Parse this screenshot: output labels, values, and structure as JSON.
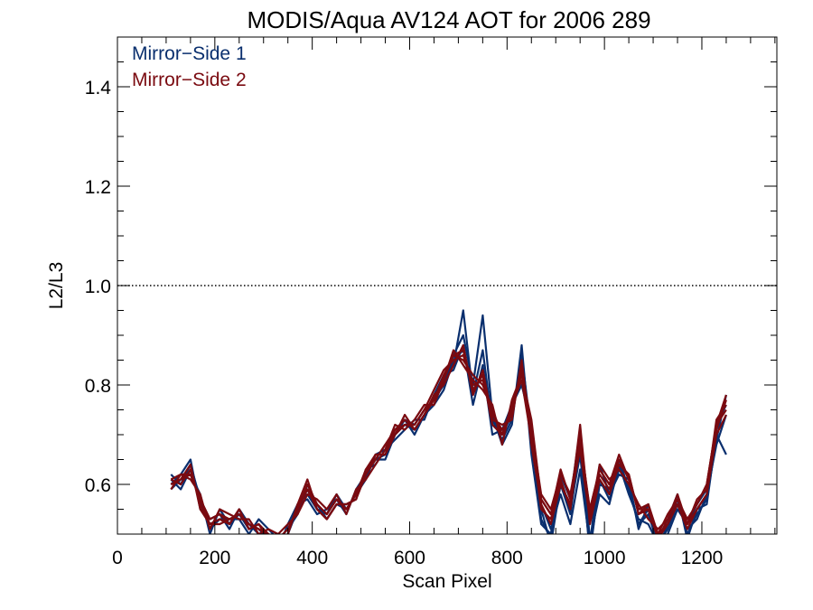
{
  "chart_data": {
    "type": "line",
    "title": "MODIS/Aqua AV124 AOT for 2006 289",
    "xlabel": "Scan Pixel",
    "ylabel": "L2/L3",
    "xlim": [
      0,
      1354
    ],
    "ylim": [
      0.5,
      1.5
    ],
    "x_ticks": [
      0,
      200,
      400,
      600,
      800,
      1000,
      1200
    ],
    "x_tick_labels": [
      "0",
      "200",
      "400",
      "600",
      "800",
      "1000",
      "1200"
    ],
    "y_ticks": [
      0.6,
      0.8,
      1.0,
      1.2,
      1.4
    ],
    "y_tick_labels": [
      "0.6",
      "0.8",
      "1.0",
      "1.2",
      "1.4"
    ],
    "x_minor_step": 50,
    "y_minor_step": 0.05,
    "reference_line": {
      "y": 1.0,
      "style": "dotted"
    },
    "legend": {
      "position": "top-left",
      "entries": [
        {
          "label": "Mirror−Side 1",
          "color": "#0a2f6e"
        },
        {
          "label": "Mirror−Side 2",
          "color": "#7a0a10"
        }
      ]
    },
    "x": [
      110,
      130,
      150,
      170,
      190,
      210,
      230,
      250,
      270,
      290,
      310,
      330,
      350,
      370,
      390,
      410,
      430,
      450,
      470,
      490,
      510,
      530,
      550,
      570,
      590,
      610,
      630,
      650,
      670,
      690,
      710,
      730,
      750,
      770,
      790,
      810,
      830,
      850,
      870,
      890,
      910,
      930,
      950,
      970,
      990,
      1010,
      1030,
      1050,
      1070,
      1090,
      1110,
      1130,
      1150,
      1170,
      1190,
      1210,
      1230,
      1250
    ],
    "series": [
      {
        "group": 1,
        "values": [
          0.62,
          0.6,
          0.64,
          0.57,
          0.51,
          0.53,
          0.52,
          0.54,
          0.51,
          0.52,
          0.5,
          0.48,
          0.5,
          0.55,
          0.59,
          0.55,
          0.53,
          0.56,
          0.55,
          0.58,
          0.62,
          0.65,
          0.66,
          0.7,
          0.72,
          0.71,
          0.74,
          0.76,
          0.81,
          0.84,
          0.95,
          0.78,
          0.87,
          0.72,
          0.7,
          0.74,
          0.84,
          0.69,
          0.55,
          0.48,
          0.6,
          0.54,
          0.68,
          0.46,
          0.61,
          0.57,
          0.63,
          0.6,
          0.52,
          0.55,
          0.47,
          0.52,
          0.57,
          0.5,
          0.54,
          0.57,
          0.69,
          0.78
        ]
      },
      {
        "group": 1,
        "values": [
          0.6,
          0.62,
          0.65,
          0.55,
          0.53,
          0.54,
          0.51,
          0.55,
          0.52,
          0.51,
          0.49,
          0.47,
          0.52,
          0.56,
          0.58,
          0.55,
          0.54,
          0.58,
          0.55,
          0.58,
          0.61,
          0.66,
          0.67,
          0.71,
          0.73,
          0.72,
          0.75,
          0.77,
          0.8,
          0.86,
          0.9,
          0.8,
          0.94,
          0.74,
          0.68,
          0.72,
          0.88,
          0.66,
          0.52,
          0.5,
          0.62,
          0.57,
          0.71,
          0.49,
          0.58,
          0.56,
          0.64,
          0.58,
          0.53,
          0.52,
          0.48,
          0.5,
          0.55,
          0.52,
          0.56,
          0.59,
          0.72,
          0.76
        ]
      },
      {
        "group": 1,
        "values": [
          0.61,
          0.59,
          0.63,
          0.56,
          0.52,
          0.53,
          0.53,
          0.53,
          0.5,
          0.53,
          0.51,
          0.49,
          0.51,
          0.54,
          0.6,
          0.56,
          0.53,
          0.56,
          0.56,
          0.57,
          0.63,
          0.64,
          0.67,
          0.69,
          0.71,
          0.73,
          0.73,
          0.78,
          0.82,
          0.83,
          0.88,
          0.76,
          0.84,
          0.7,
          0.71,
          0.76,
          0.8,
          0.72,
          0.56,
          0.51,
          0.58,
          0.52,
          0.63,
          0.48,
          0.64,
          0.58,
          0.62,
          0.61,
          0.51,
          0.56,
          0.49,
          0.53,
          0.58,
          0.49,
          0.55,
          0.56,
          0.7,
          0.66
        ]
      },
      {
        "group": 1,
        "values": [
          0.59,
          0.61,
          0.62,
          0.58,
          0.5,
          0.55,
          0.52,
          0.55,
          0.52,
          0.5,
          0.5,
          0.48,
          0.5,
          0.56,
          0.57,
          0.54,
          0.55,
          0.57,
          0.54,
          0.59,
          0.62,
          0.65,
          0.65,
          0.7,
          0.73,
          0.7,
          0.74,
          0.76,
          0.79,
          0.85,
          0.87,
          0.79,
          0.82,
          0.73,
          0.69,
          0.73,
          0.86,
          0.7,
          0.53,
          0.49,
          0.61,
          0.55,
          0.66,
          0.47,
          0.6,
          0.59,
          0.65,
          0.59,
          0.52,
          0.54,
          0.48,
          0.51,
          0.56,
          0.51,
          0.53,
          0.58,
          0.68,
          0.74
        ]
      },
      {
        "group": 2,
        "values": [
          0.6,
          0.61,
          0.62,
          0.57,
          0.53,
          0.54,
          0.53,
          0.54,
          0.52,
          0.51,
          0.5,
          0.49,
          0.51,
          0.55,
          0.59,
          0.56,
          0.54,
          0.57,
          0.55,
          0.58,
          0.63,
          0.65,
          0.68,
          0.71,
          0.72,
          0.72,
          0.75,
          0.77,
          0.82,
          0.86,
          0.85,
          0.82,
          0.8,
          0.75,
          0.7,
          0.75,
          0.83,
          0.71,
          0.58,
          0.55,
          0.62,
          0.58,
          0.69,
          0.55,
          0.63,
          0.6,
          0.66,
          0.61,
          0.55,
          0.56,
          0.5,
          0.54,
          0.57,
          0.53,
          0.56,
          0.6,
          0.72,
          0.78
        ]
      },
      {
        "group": 2,
        "values": [
          0.61,
          0.6,
          0.63,
          0.56,
          0.52,
          0.53,
          0.52,
          0.55,
          0.51,
          0.52,
          0.49,
          0.48,
          0.5,
          0.56,
          0.61,
          0.55,
          0.53,
          0.56,
          0.56,
          0.57,
          0.62,
          0.66,
          0.66,
          0.7,
          0.74,
          0.71,
          0.74,
          0.78,
          0.8,
          0.84,
          0.88,
          0.78,
          0.83,
          0.73,
          0.72,
          0.73,
          0.85,
          0.68,
          0.56,
          0.52,
          0.6,
          0.56,
          0.72,
          0.52,
          0.61,
          0.58,
          0.64,
          0.62,
          0.54,
          0.55,
          0.49,
          0.52,
          0.56,
          0.51,
          0.55,
          0.58,
          0.7,
          0.74
        ]
      },
      {
        "group": 2,
        "values": [
          0.59,
          0.62,
          0.61,
          0.58,
          0.51,
          0.55,
          0.54,
          0.53,
          0.53,
          0.5,
          0.51,
          0.5,
          0.52,
          0.54,
          0.58,
          0.57,
          0.55,
          0.58,
          0.54,
          0.59,
          0.61,
          0.64,
          0.67,
          0.72,
          0.71,
          0.73,
          0.76,
          0.76,
          0.81,
          0.87,
          0.84,
          0.81,
          0.79,
          0.76,
          0.68,
          0.77,
          0.82,
          0.73,
          0.57,
          0.54,
          0.63,
          0.57,
          0.67,
          0.53,
          0.64,
          0.61,
          0.63,
          0.6,
          0.56,
          0.53,
          0.51,
          0.53,
          0.58,
          0.52,
          0.57,
          0.59,
          0.73,
          0.76
        ]
      },
      {
        "group": 2,
        "values": [
          0.6,
          0.61,
          0.64,
          0.55,
          0.52,
          0.52,
          0.53,
          0.54,
          0.52,
          0.51,
          0.5,
          0.49,
          0.51,
          0.55,
          0.6,
          0.56,
          0.54,
          0.57,
          0.55,
          0.58,
          0.62,
          0.65,
          0.68,
          0.7,
          0.72,
          0.72,
          0.75,
          0.79,
          0.83,
          0.85,
          0.86,
          0.8,
          0.81,
          0.74,
          0.71,
          0.74,
          0.84,
          0.7,
          0.55,
          0.53,
          0.61,
          0.55,
          0.7,
          0.54,
          0.62,
          0.59,
          0.65,
          0.61,
          0.55,
          0.55,
          0.5,
          0.52,
          0.56,
          0.52,
          0.55,
          0.58,
          0.71,
          0.77
        ]
      },
      {
        "group": 2,
        "values": [
          0.61,
          0.62,
          0.62,
          0.57,
          0.53,
          0.54,
          0.52,
          0.55,
          0.51,
          0.52,
          0.5,
          0.48,
          0.5,
          0.56,
          0.59,
          0.55,
          0.53,
          0.56,
          0.56,
          0.57,
          0.63,
          0.66,
          0.66,
          0.71,
          0.73,
          0.71,
          0.74,
          0.77,
          0.81,
          0.86,
          0.87,
          0.79,
          0.82,
          0.72,
          0.7,
          0.76,
          0.81,
          0.69,
          0.57,
          0.54,
          0.6,
          0.56,
          0.68,
          0.55,
          0.63,
          0.6,
          0.64,
          0.62,
          0.54,
          0.56,
          0.49,
          0.53,
          0.57,
          0.53,
          0.56,
          0.6,
          0.72,
          0.75
        ]
      }
    ]
  }
}
